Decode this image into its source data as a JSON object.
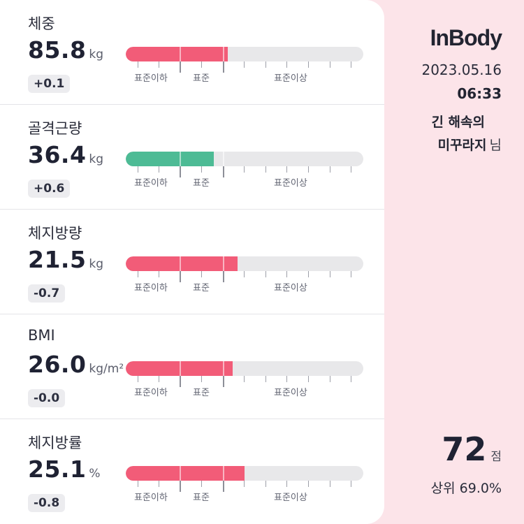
{
  "scale_labels": {
    "under": "표준이하",
    "normal": "표준",
    "over": "표준이상"
  },
  "metrics": [
    {
      "label": "체중",
      "value": "85.8",
      "unit": "kg",
      "delta": "+0.1",
      "fill_ratio": 0.43,
      "status_color": "red"
    },
    {
      "label": "골격근량",
      "value": "36.4",
      "unit": "kg",
      "delta": "+0.6",
      "fill_ratio": 0.37,
      "status_color": "green"
    },
    {
      "label": "체지방량",
      "value": "21.5",
      "unit": "kg",
      "delta": "-0.7",
      "fill_ratio": 0.47,
      "status_color": "red"
    },
    {
      "label": "BMI",
      "value": "26.0",
      "unit": "kg/m²",
      "delta": "-0.0",
      "fill_ratio": 0.45,
      "status_color": "red"
    },
    {
      "label": "체지방률",
      "value": "25.1",
      "unit": "%",
      "delta": "-0.8",
      "fill_ratio": 0.5,
      "status_color": "red"
    }
  ],
  "header": {
    "logo_text": "InBody",
    "date": "2023.05.16",
    "time": "06:33",
    "user_line1": "긴 해속의",
    "user_line2": "미꾸라지",
    "user_suffix": "님"
  },
  "score": {
    "value": "72",
    "unit": "점",
    "rank_text": "상위 69.0%"
  },
  "colors": {
    "background": "#fce4e9",
    "red_fill": "#f25c78",
    "green_fill": "#4dbb95",
    "track": "#e8e8ea"
  }
}
